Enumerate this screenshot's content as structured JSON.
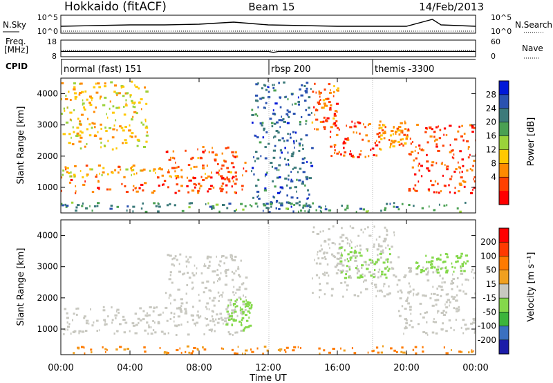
{
  "header": {
    "station": "Hokkaido (fitACF)",
    "beam": "Beam 15",
    "date": "14/Feb/2013"
  },
  "noise_panel": {
    "left_label": "N.Sky",
    "right_label": "N.Search",
    "left_ticks": [
      "10^5",
      "10^0"
    ],
    "right_ticks": [
      "10^5",
      "10^0"
    ]
  },
  "freq_panel": {
    "left_label_1": "Freq.",
    "left_label_2": "[MHz]",
    "right_label": "Nave",
    "left_ticks": [
      "18",
      "8"
    ],
    "right_ticks": [
      "60",
      "0"
    ]
  },
  "cpid_panel": {
    "label": "CPID",
    "segments": [
      {
        "text": "normal (fast) 151",
        "start_hour": 0
      },
      {
        "text": "rbsp 200",
        "start_hour": 12
      },
      {
        "text": "themis -3300",
        "start_hour": 18
      }
    ]
  },
  "power_panel": {
    "ylabel": "Slant Range [km]",
    "y_ticks": [
      "1000",
      "2000",
      "3000",
      "4000"
    ],
    "colorbar_label": "Power [dB]",
    "colorbar_ticks": [
      "28",
      "24",
      "20",
      "16",
      "12",
      "8",
      "4"
    ]
  },
  "velocity_panel": {
    "ylabel": "Slant Range [km]",
    "y_ticks": [
      "1000",
      "2000",
      "3000",
      "4000"
    ],
    "colorbar_label": "Velocity [m s⁻¹]",
    "colorbar_ticks": [
      "200",
      "100",
      "50",
      "15",
      "-15",
      "-50",
      "-100",
      "-200"
    ]
  },
  "x_axis": {
    "label": "Time UT",
    "ticks": [
      "00:00",
      "04:00",
      "08:00",
      "12:00",
      "16:00",
      "20:00",
      "00:00"
    ]
  },
  "colors": {
    "power_scale": [
      "#0018d8",
      "#2a52b0",
      "#3c7a7a",
      "#4aa052",
      "#9ad23a",
      "#ffc800",
      "#ff8a00",
      "#ff4000",
      "#ff0000"
    ],
    "velocity_scale": [
      "#1c1ca8",
      "#3a70c0",
      "#3cb43c",
      "#84d84a",
      "#c8c8c0",
      "#f0a020",
      "#ff7a00",
      "#ff3a00",
      "#ff0000"
    ]
  },
  "chart_data": {
    "type": "heatmap",
    "title": "Hokkaido (fitACF)",
    "xlabel": "Time UT",
    "ylabel": "Slant Range [km]",
    "xlim": [
      0,
      24
    ],
    "ylim": [
      180,
      4500
    ],
    "grid": false,
    "power_echo_regions": [
      {
        "t_start": 0.0,
        "t_end": 10.5,
        "range_low": 800,
        "range_high": 1350,
        "power_db": 28
      },
      {
        "t_start": 6.0,
        "t_end": 10.7,
        "range_low": 1300,
        "range_high": 2300,
        "power_db": 26
      },
      {
        "t_start": 0.0,
        "t_end": 6.0,
        "range_low": 1300,
        "range_high": 1700,
        "power_db": 22
      },
      {
        "t_start": 0.0,
        "t_end": 5.0,
        "range_low": 2200,
        "range_high": 4400,
        "power_db": 20
      },
      {
        "t_start": 14.5,
        "t_end": 16.0,
        "range_low": 2800,
        "range_high": 4400,
        "power_db": 26
      },
      {
        "t_start": 15.5,
        "t_end": 18.3,
        "range_low": 1900,
        "range_high": 3100,
        "power_db": 28
      },
      {
        "t_start": 18.3,
        "t_end": 20.0,
        "range_low": 2200,
        "range_high": 3100,
        "power_db": 24
      },
      {
        "t_start": 20.0,
        "t_end": 24.0,
        "range_low": 800,
        "range_high": 3000,
        "power_db": 28
      },
      {
        "t_start": 11.0,
        "t_end": 14.5,
        "range_low": 200,
        "range_high": 4400,
        "power_db": 6
      },
      {
        "t_start": 0.0,
        "t_end": 24.0,
        "range_low": 200,
        "range_high": 500,
        "power_db": 10
      }
    ],
    "velocity_echo_regions": [
      {
        "t_start": 0.0,
        "t_end": 10.5,
        "range_low": 800,
        "range_high": 1700,
        "velocity": 0
      },
      {
        "t_start": 6.0,
        "t_end": 10.7,
        "range_low": 1300,
        "range_high": 3400,
        "velocity": 0
      },
      {
        "t_start": 9.5,
        "t_end": 11.0,
        "range_low": 900,
        "range_high": 2000,
        "velocity": 25
      },
      {
        "t_start": 14.5,
        "t_end": 19.5,
        "range_low": 2000,
        "range_high": 4300,
        "velocity": 0
      },
      {
        "t_start": 16.0,
        "t_end": 19.0,
        "range_low": 2600,
        "range_high": 3600,
        "velocity": 30
      },
      {
        "t_start": 19.5,
        "t_end": 24.0,
        "range_low": 800,
        "range_high": 3000,
        "velocity": 0
      },
      {
        "t_start": 20.5,
        "t_end": 23.5,
        "range_low": 2800,
        "range_high": 3400,
        "velocity": 40
      },
      {
        "t_start": 0.0,
        "t_end": 24.0,
        "range_low": 200,
        "range_high": 450,
        "velocity": -50
      }
    ],
    "noise_sky": [
      {
        "t": 0.0,
        "v": 0.4
      },
      {
        "t": 2.0,
        "v": 0.45
      },
      {
        "t": 4.0,
        "v": 0.5
      },
      {
        "t": 6.0,
        "v": 0.5
      },
      {
        "t": 8.0,
        "v": 0.55
      },
      {
        "t": 10.0,
        "v": 0.7
      },
      {
        "t": 11.0,
        "v": 0.6
      },
      {
        "t": 12.0,
        "v": 0.5
      },
      {
        "t": 14.0,
        "v": 0.45
      },
      {
        "t": 16.0,
        "v": 0.4
      },
      {
        "t": 18.0,
        "v": 0.4
      },
      {
        "t": 20.0,
        "v": 0.4
      },
      {
        "t": 21.5,
        "v": 0.9
      },
      {
        "t": 22.0,
        "v": 0.5
      },
      {
        "t": 24.0,
        "v": 0.4
      }
    ],
    "frequency_mhz": [
      {
        "t": 0.0,
        "v": 11.0
      },
      {
        "t": 12.0,
        "v": 11.0
      },
      {
        "t": 12.3,
        "v": 10.4
      },
      {
        "t": 12.6,
        "v": 11.0
      },
      {
        "t": 24.0,
        "v": 11.0
      }
    ],
    "nave": [
      {
        "t": 0.0,
        "v": 22
      },
      {
        "t": 24.0,
        "v": 22
      }
    ]
  }
}
